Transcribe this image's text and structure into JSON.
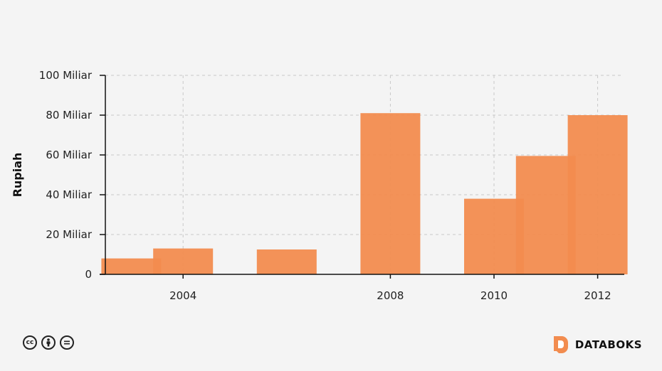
{
  "chart_data": {
    "type": "bar",
    "x": [
      2003,
      2004,
      2006,
      2008,
      2010,
      2011,
      2012
    ],
    "values": [
      8,
      13,
      12.5,
      81,
      38,
      59.5,
      80
    ],
    "ylabel": "Rupiah",
    "ylim": [
      0,
      100
    ],
    "yticks": [
      {
        "value": 0,
        "label": "0"
      },
      {
        "value": 20,
        "label": "20 Miliar"
      },
      {
        "value": 40,
        "label": "40 Miliar"
      },
      {
        "value": 60,
        "label": "60 Miliar"
      },
      {
        "value": 80,
        "label": "80 Miliar"
      },
      {
        "value": 100,
        "label": "100 Miliar"
      }
    ],
    "xticks": [
      {
        "value": 2004,
        "label": "2004"
      },
      {
        "value": 2008,
        "label": "2008"
      },
      {
        "value": 2010,
        "label": "2010"
      },
      {
        "value": 2012,
        "label": "2012"
      }
    ],
    "grid": true,
    "bar_color": "#f28c4f"
  },
  "footer": {
    "license_icons": [
      "cc-icon",
      "attribution-icon",
      "no-derivatives-icon"
    ],
    "brand": "DATABOKS",
    "brand_color": "#f28c4f"
  }
}
